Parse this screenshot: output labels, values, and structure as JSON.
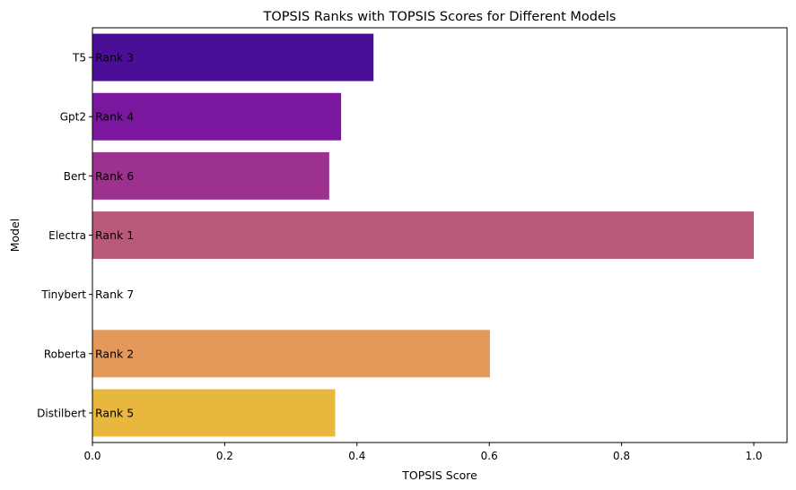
{
  "chart_data": {
    "type": "bar",
    "orientation": "horizontal",
    "title": "TOPSIS Ranks with TOPSIS Scores for Different Models",
    "xlabel": "TOPSIS Score",
    "ylabel": "Model",
    "xlim": [
      0,
      1.0
    ],
    "xticks": [
      "0.0",
      "0.2",
      "0.4",
      "0.6",
      "0.8",
      "1.0"
    ],
    "grid": false,
    "categories": [
      "T5",
      "Gpt2",
      "Bert",
      "Electra",
      "Tinybert",
      "Roberta",
      "Distilbert"
    ],
    "values": [
      0.425,
      0.376,
      0.358,
      1.0,
      0.0,
      0.601,
      0.367
    ],
    "labels": [
      "Rank 3",
      "Rank 4",
      "Rank 6",
      "Rank 1",
      "Rank 7",
      "Rank 2",
      "Rank 5"
    ],
    "colors": [
      "#4a0f96",
      "#7a179e",
      "#9d3190",
      "#bb597a",
      "#d57a61",
      "#e3995a",
      "#e8b73e"
    ]
  }
}
